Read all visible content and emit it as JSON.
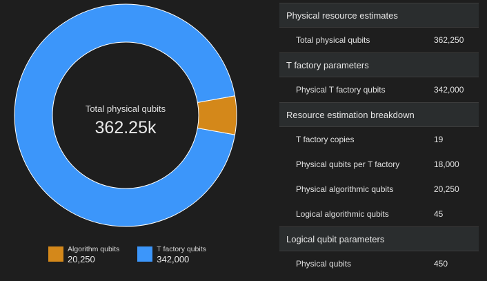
{
  "donut": {
    "center_label": "Total physical qubits",
    "center_value": "362.25k",
    "total": 362250,
    "segments": [
      {
        "name": "T factory qubits",
        "value": 342000,
        "color": "#3c96fa"
      },
      {
        "name": "Algorithm qubits",
        "value": 20250,
        "color": "#d4881a"
      }
    ]
  },
  "legend": [
    {
      "name": "Algorithm qubits",
      "value": "20,250",
      "color": "#d4881a"
    },
    {
      "name": "T factory qubits",
      "value": "342,000",
      "color": "#3c96fa"
    }
  ],
  "table": {
    "sections": [
      {
        "header": "Physical resource estimates",
        "rows": [
          {
            "label": "Total physical qubits",
            "value": "362,250"
          }
        ]
      },
      {
        "header": "T factory parameters",
        "rows": [
          {
            "label": "Physical T factory qubits",
            "value": "342,000"
          }
        ]
      },
      {
        "header": "Resource estimation breakdown",
        "rows": [
          {
            "label": "T factory copies",
            "value": "19"
          },
          {
            "label": "Physical qubits per T factory",
            "value": "18,000"
          },
          {
            "label": "Physical algorithmic qubits",
            "value": "20,250"
          },
          {
            "label": "Logical algorithmic qubits",
            "value": "45"
          }
        ]
      },
      {
        "header": "Logical qubit parameters",
        "rows": [
          {
            "label": "Physical qubits",
            "value": "450"
          }
        ]
      }
    ]
  }
}
